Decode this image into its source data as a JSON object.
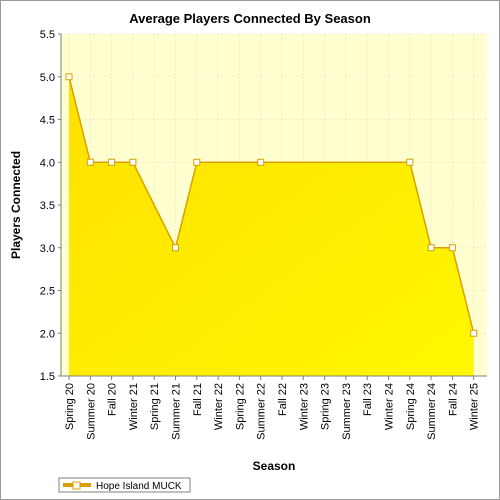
{
  "chart_data": {
    "type": "area",
    "title": "Average Players Connected By Season",
    "xlabel": "Season",
    "ylabel": "Players Connected",
    "ylim": [
      1.5,
      5.5
    ],
    "yticks": [
      "1.5",
      "2.0",
      "2.5",
      "3.0",
      "3.5",
      "4.0",
      "4.5",
      "5.0",
      "5.5"
    ],
    "categories": [
      "Spring 20",
      "Summer 20",
      "Fall 20",
      "Winter 21",
      "Spring 21",
      "Summer 21",
      "Fall 21",
      "Winter 22",
      "Spring 22",
      "Summer 22",
      "Fall 22",
      "Winter 23",
      "Spring 23",
      "Summer 23",
      "Fall 23",
      "Winter 24",
      "Spring 24",
      "Summer 24",
      "Fall 24",
      "Winter 25"
    ],
    "series": [
      {
        "name": "Hope Island MUCK",
        "values": [
          5,
          4,
          4,
          4,
          null,
          3,
          4,
          null,
          null,
          4,
          null,
          null,
          null,
          null,
          null,
          null,
          4,
          3,
          3,
          2
        ]
      }
    ],
    "grid": true,
    "legend_position": "bottom-left",
    "colors": {
      "plot_background": "#ffffd0",
      "fill_top": "#ffe000",
      "fill_bottom": "#fff800",
      "line": "#d9a000",
      "marker_fill": "#ffffff"
    }
  }
}
